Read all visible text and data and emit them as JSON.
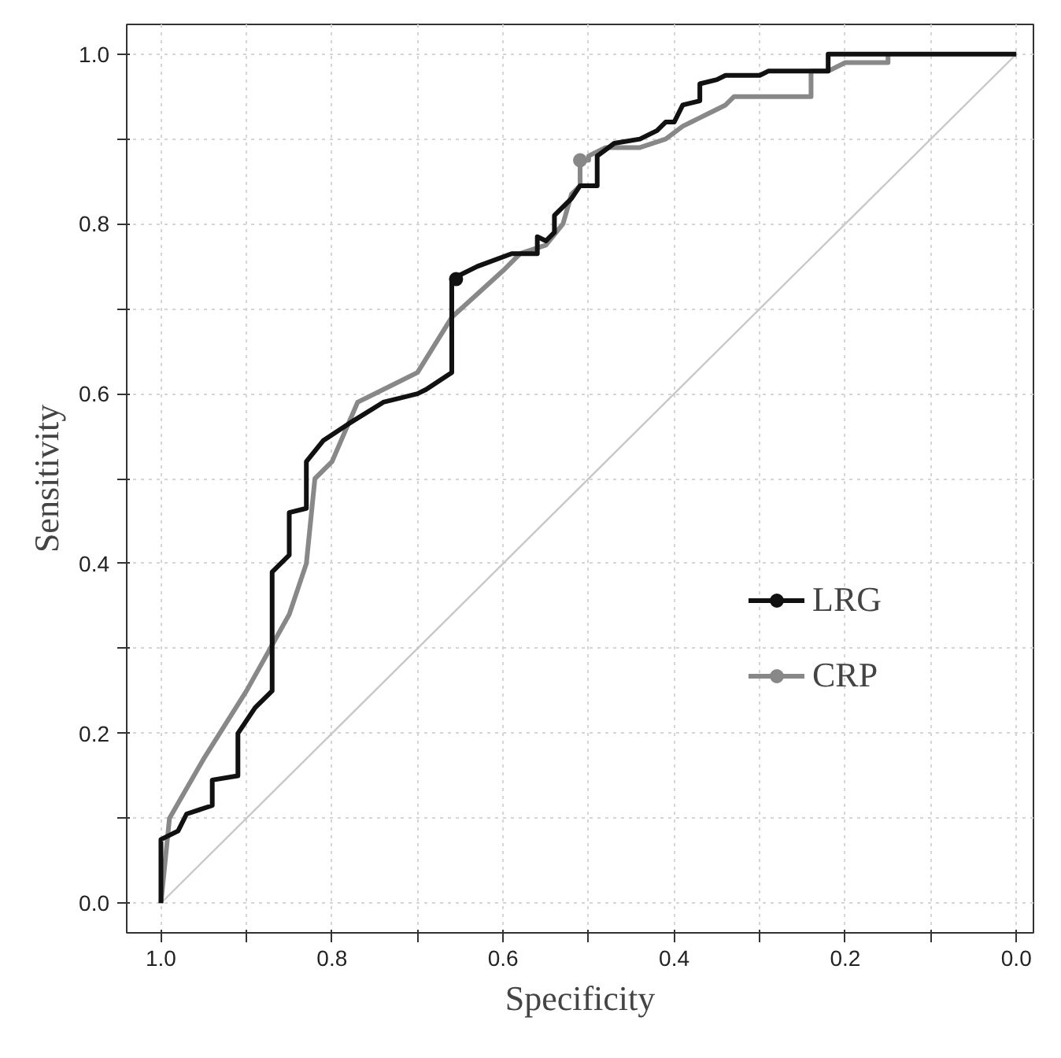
{
  "chart_data": {
    "type": "line",
    "xlabel": "Specificity",
    "ylabel": "Sensitivity",
    "xlim": [
      1.04,
      -0.02
    ],
    "ylim": [
      -0.035,
      1.035
    ],
    "xticks": [
      {
        "value": 1.0,
        "label": "1.0"
      },
      {
        "value": 0.9,
        "label": null
      },
      {
        "value": 0.8,
        "label": "0.8"
      },
      {
        "value": 0.7,
        "label": null
      },
      {
        "value": 0.6,
        "label": "0.6"
      },
      {
        "value": 0.5,
        "label": null
      },
      {
        "value": 0.4,
        "label": "0.4"
      },
      {
        "value": 0.3,
        "label": null
      },
      {
        "value": 0.2,
        "label": "0.2"
      },
      {
        "value": 0.1,
        "label": null
      },
      {
        "value": 0.0,
        "label": "0.0"
      }
    ],
    "yticks": [
      {
        "value": 0.0,
        "label": "0.0"
      },
      {
        "value": 0.1,
        "label": null
      },
      {
        "value": 0.2,
        "label": "0.2"
      },
      {
        "value": 0.3,
        "label": null
      },
      {
        "value": 0.4,
        "label": "0.4"
      },
      {
        "value": 0.5,
        "label": null
      },
      {
        "value": 0.6,
        "label": "0.6"
      },
      {
        "value": 0.7,
        "label": null
      },
      {
        "value": 0.8,
        "label": "0.8"
      },
      {
        "value": 0.9,
        "label": null
      },
      {
        "value": 1.0,
        "label": "1.0"
      }
    ],
    "grid": true,
    "legend": "right",
    "line_style": "solid",
    "series": [
      {
        "color": "#c8c8c8",
        "x": [
          1.0,
          0.0
        ],
        "values": [
          0.0,
          1.0
        ]
      },
      {
        "name": "CRP",
        "color": "#888888",
        "x": [
          1.0,
          0.99,
          0.95,
          0.9,
          0.85,
          0.83,
          0.82,
          0.8,
          0.77,
          0.7,
          0.66,
          0.6,
          0.58,
          0.55,
          0.53,
          0.52,
          0.51,
          0.51,
          0.5,
          0.5,
          0.48,
          0.44,
          0.41,
          0.39,
          0.38,
          0.37,
          0.36,
          0.34,
          0.33,
          0.24,
          0.24,
          0.22,
          0.2,
          0.15,
          0.15
        ],
        "values": [
          0.0,
          0.1,
          0.17,
          0.25,
          0.34,
          0.4,
          0.5,
          0.52,
          0.59,
          0.625,
          0.69,
          0.745,
          0.765,
          0.775,
          0.8,
          0.835,
          0.845,
          0.875,
          0.875,
          0.88,
          0.89,
          0.89,
          0.9,
          0.915,
          0.92,
          0.925,
          0.93,
          0.94,
          0.95,
          0.95,
          0.98,
          0.98,
          0.99,
          0.99,
          1.0
        ]
      },
      {
        "name": "LRG",
        "color": "#111111",
        "x": [
          1.0,
          1.0,
          0.98,
          0.97,
          0.94,
          0.94,
          0.91,
          0.91,
          0.89,
          0.88,
          0.87,
          0.87,
          0.85,
          0.85,
          0.83,
          0.83,
          0.81,
          0.78,
          0.74,
          0.7,
          0.69,
          0.66,
          0.66,
          0.63,
          0.59,
          0.56,
          0.56,
          0.55,
          0.54,
          0.54,
          0.52,
          0.51,
          0.49,
          0.49,
          0.47,
          0.44,
          0.42,
          0.41,
          0.4,
          0.39,
          0.37,
          0.37,
          0.35,
          0.34,
          0.3,
          0.29,
          0.22,
          0.22,
          0.0
        ],
        "values": [
          0.0,
          0.075,
          0.085,
          0.105,
          0.115,
          0.145,
          0.15,
          0.2,
          0.23,
          0.24,
          0.25,
          0.39,
          0.41,
          0.46,
          0.465,
          0.52,
          0.545,
          0.565,
          0.59,
          0.6,
          0.605,
          0.625,
          0.735,
          0.75,
          0.765,
          0.765,
          0.785,
          0.78,
          0.79,
          0.81,
          0.83,
          0.845,
          0.845,
          0.88,
          0.895,
          0.9,
          0.91,
          0.92,
          0.92,
          0.94,
          0.945,
          0.965,
          0.97,
          0.975,
          0.975,
          0.98,
          0.98,
          1.0,
          1.0
        ]
      },
      {
        "type": "scatter",
        "color": "#888888",
        "x": [
          0.51
        ],
        "values": [
          0.875
        ]
      },
      {
        "type": "scatter",
        "color": "#111111",
        "x": [
          0.655
        ],
        "values": [
          0.735
        ]
      }
    ]
  }
}
